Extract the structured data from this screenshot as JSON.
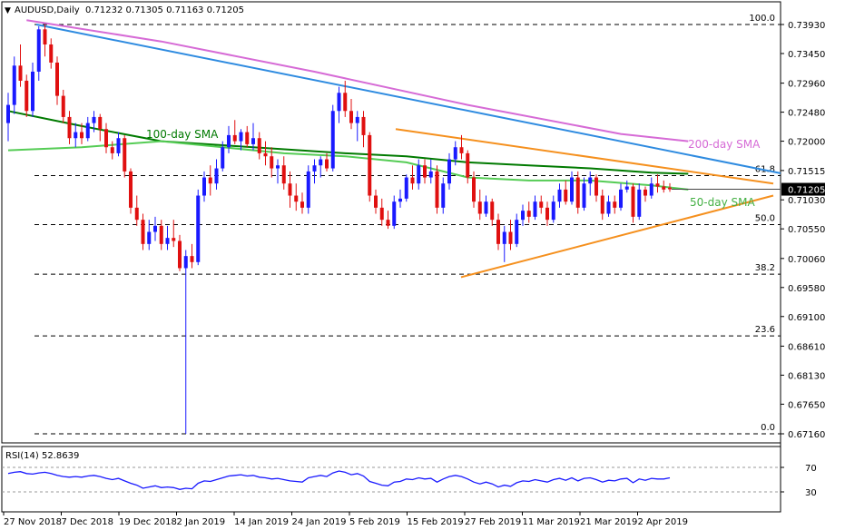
{
  "header": {
    "symbol": "AUDUSD,Daily",
    "ohlc": "0.71232 0.71305 0.71163 0.71205"
  },
  "rsi_header": "RSI(14) 52.8639",
  "annotations": {
    "sma100": "100-day SMA",
    "sma200": "200-day SMA",
    "sma50": "50-day SMA"
  },
  "fib_labels": [
    "100.0",
    "61.8",
    "50.0",
    "38.2",
    "23.6",
    "0.0"
  ],
  "fib_levels": [
    0.7393,
    0.7143,
    0.7062,
    0.698,
    0.6878,
    0.6716
  ],
  "price_ticks": [
    "0.73930",
    "0.73450",
    "0.72960",
    "0.72480",
    "0.72000",
    "0.71515",
    "0.71030",
    "0.70550",
    "0.70060",
    "0.69580",
    "0.69100",
    "0.68610",
    "0.68130",
    "0.67650",
    "0.67160"
  ],
  "current_price": "0.71205",
  "rsi_ticks": [
    "70",
    "30"
  ],
  "date_ticks": [
    "27 Nov 2018",
    "7 Dec 2018",
    "19 Dec 2018",
    "2 Jan 2019",
    "14 Jan 2019",
    "24 Jan 2019",
    "5 Feb 2019",
    "15 Feb 2019",
    "27 Feb 2019",
    "11 Mar 2019",
    "21 Mar 2019",
    "2 Apr 2019"
  ],
  "colors": {
    "bull": "#1a1aff",
    "bear": "#e01010",
    "sma100": "#007a00",
    "sma50": "#55cc55",
    "sma200": "#d66bd6",
    "trend_blue": "#2e8be0",
    "trend_orange": "#f5901e",
    "rsi": "#1a1aff"
  },
  "chart_data": [
    {
      "type": "candlestick",
      "title": "AUDUSD,Daily",
      "ylim": [
        0.6716,
        0.7393
      ],
      "series": [
        {
          "name": "AUDUSD",
          "ohlc": [
            [
              0.723,
              0.728,
              0.72,
              0.726
            ],
            [
              0.726,
              0.734,
              0.7245,
              0.7325
            ],
            [
              0.7325,
              0.736,
              0.729,
              0.73
            ],
            [
              0.73,
              0.731,
              0.724,
              0.725
            ],
            [
              0.725,
              0.733,
              0.724,
              0.7315
            ],
            [
              0.7315,
              0.739,
              0.73,
              0.7385
            ],
            [
              0.7385,
              0.7393,
              0.734,
              0.736
            ],
            [
              0.736,
              0.737,
              0.732,
              0.733
            ],
            [
              0.733,
              0.734,
              0.726,
              0.7275
            ],
            [
              0.7275,
              0.7285,
              0.723,
              0.724
            ],
            [
              0.724,
              0.725,
              0.7195,
              0.7205
            ],
            [
              0.7205,
              0.723,
              0.719,
              0.7215
            ],
            [
              0.7215,
              0.723,
              0.7195,
              0.7205
            ],
            [
              0.7205,
              0.724,
              0.72,
              0.723
            ],
            [
              0.723,
              0.725,
              0.7215,
              0.724
            ],
            [
              0.724,
              0.7245,
              0.72,
              0.722
            ],
            [
              0.722,
              0.723,
              0.718,
              0.719
            ],
            [
              0.719,
              0.72,
              0.717,
              0.718
            ],
            [
              0.718,
              0.7215,
              0.7175,
              0.7205
            ],
            [
              0.7205,
              0.721,
              0.714,
              0.715
            ],
            [
              0.715,
              0.7155,
              0.708,
              0.709
            ],
            [
              0.709,
              0.711,
              0.706,
              0.707
            ],
            [
              0.707,
              0.708,
              0.702,
              0.703
            ],
            [
              0.703,
              0.707,
              0.702,
              0.705
            ],
            [
              0.705,
              0.7075,
              0.7035,
              0.706
            ],
            [
              0.706,
              0.707,
              0.702,
              0.703
            ],
            [
              0.703,
              0.706,
              0.702,
              0.704
            ],
            [
              0.704,
              0.707,
              0.7025,
              0.7035
            ],
            [
              0.7035,
              0.7045,
              0.6985,
              0.699
            ],
            [
              0.699,
              0.702,
              0.6716,
              0.701
            ],
            [
              0.701,
              0.703,
              0.699,
              0.7
            ],
            [
              0.7,
              0.712,
              0.6995,
              0.711
            ],
            [
              0.711,
              0.715,
              0.71,
              0.714
            ],
            [
              0.714,
              0.716,
              0.711,
              0.713
            ],
            [
              0.713,
              0.717,
              0.712,
              0.7155
            ],
            [
              0.7155,
              0.72,
              0.715,
              0.719
            ],
            [
              0.719,
              0.7225,
              0.718,
              0.721
            ],
            [
              0.721,
              0.7235,
              0.7195,
              0.72
            ],
            [
              0.72,
              0.722,
              0.7185,
              0.7215
            ],
            [
              0.7215,
              0.7225,
              0.719,
              0.7195
            ],
            [
              0.7195,
              0.723,
              0.7185,
              0.7205
            ],
            [
              0.7205,
              0.7215,
              0.717,
              0.718
            ],
            [
              0.718,
              0.72,
              0.716,
              0.7175
            ],
            [
              0.7175,
              0.719,
              0.714,
              0.7155
            ],
            [
              0.7155,
              0.717,
              0.713,
              0.716
            ],
            [
              0.716,
              0.7175,
              0.712,
              0.713
            ],
            [
              0.713,
              0.715,
              0.709,
              0.711
            ],
            [
              0.711,
              0.713,
              0.7085,
              0.71
            ],
            [
              0.71,
              0.7115,
              0.708,
              0.709
            ],
            [
              0.709,
              0.716,
              0.708,
              0.715
            ],
            [
              0.715,
              0.717,
              0.713,
              0.716
            ],
            [
              0.716,
              0.7175,
              0.714,
              0.717
            ],
            [
              0.717,
              0.718,
              0.715,
              0.7155
            ],
            [
              0.7155,
              0.726,
              0.715,
              0.725
            ],
            [
              0.725,
              0.729,
              0.723,
              0.728
            ],
            [
              0.728,
              0.73,
              0.724,
              0.725
            ],
            [
              0.725,
              0.727,
              0.722,
              0.723
            ],
            [
              0.723,
              0.725,
              0.72,
              0.724
            ],
            [
              0.724,
              0.725,
              0.719,
              0.721
            ],
            [
              0.721,
              0.7215,
              0.71,
              0.711
            ],
            [
              0.711,
              0.712,
              0.708,
              0.709
            ],
            [
              0.709,
              0.7105,
              0.706,
              0.707
            ],
            [
              0.707,
              0.7085,
              0.7055,
              0.706
            ],
            [
              0.706,
              0.711,
              0.7055,
              0.71
            ],
            [
              0.71,
              0.712,
              0.709,
              0.7105
            ],
            [
              0.7105,
              0.7145,
              0.71,
              0.714
            ],
            [
              0.714,
              0.716,
              0.712,
              0.713
            ],
            [
              0.713,
              0.717,
              0.712,
              0.716
            ],
            [
              0.716,
              0.717,
              0.713,
              0.714
            ],
            [
              0.714,
              0.717,
              0.713,
              0.715
            ],
            [
              0.715,
              0.716,
              0.708,
              0.709
            ],
            [
              0.709,
              0.714,
              0.708,
              0.713
            ],
            [
              0.713,
              0.718,
              0.712,
              0.717
            ],
            [
              0.717,
              0.72,
              0.716,
              0.719
            ],
            [
              0.719,
              0.721,
              0.717,
              0.718
            ],
            [
              0.718,
              0.7185,
              0.713,
              0.714
            ],
            [
              0.714,
              0.715,
              0.709,
              0.71
            ],
            [
              0.71,
              0.712,
              0.707,
              0.708
            ],
            [
              0.708,
              0.711,
              0.7075,
              0.71
            ],
            [
              0.71,
              0.7105,
              0.706,
              0.707
            ],
            [
              0.707,
              0.708,
              0.702,
              0.703
            ],
            [
              0.703,
              0.706,
              0.7,
              0.705
            ],
            [
              0.705,
              0.707,
              0.702,
              0.703
            ],
            [
              0.703,
              0.708,
              0.7025,
              0.707
            ],
            [
              0.707,
              0.7095,
              0.706,
              0.7085
            ],
            [
              0.7085,
              0.71,
              0.7065,
              0.7075
            ],
            [
              0.7075,
              0.711,
              0.707,
              0.71
            ],
            [
              0.71,
              0.711,
              0.708,
              0.709
            ],
            [
              0.709,
              0.71,
              0.706,
              0.707
            ],
            [
              0.707,
              0.711,
              0.7065,
              0.71
            ],
            [
              0.71,
              0.713,
              0.709,
              0.712
            ],
            [
              0.712,
              0.7135,
              0.7095,
              0.71
            ],
            [
              0.71,
              0.715,
              0.7095,
              0.714
            ],
            [
              0.714,
              0.715,
              0.708,
              0.709
            ],
            [
              0.709,
              0.714,
              0.7085,
              0.713
            ],
            [
              0.713,
              0.715,
              0.711,
              0.714
            ],
            [
              0.714,
              0.7145,
              0.71,
              0.711
            ],
            [
              0.711,
              0.712,
              0.707,
              0.708
            ],
            [
              0.708,
              0.711,
              0.7075,
              0.71
            ],
            [
              0.71,
              0.711,
              0.708,
              0.709
            ],
            [
              0.709,
              0.713,
              0.7085,
              0.712
            ],
            [
              0.712,
              0.7135,
              0.7115,
              0.7125
            ],
            [
              0.7125,
              0.713,
              0.7065,
              0.7075
            ],
            [
              0.7075,
              0.713,
              0.707,
              0.712
            ],
            [
              0.712,
              0.7125,
              0.71,
              0.711
            ],
            [
              0.711,
              0.714,
              0.7105,
              0.713
            ],
            [
              0.713,
              0.7145,
              0.7115,
              0.7125
            ],
            [
              0.7125,
              0.7135,
              0.7115,
              0.712
            ],
            [
              0.71232,
              0.71305,
              0.71163,
              0.71205
            ]
          ]
        },
        {
          "name": "100-day SMA",
          "x": [
            0,
            12,
            25,
            40,
            55,
            65,
            75,
            85,
            95,
            105,
            111
          ],
          "y": [
            0.725,
            0.7225,
            0.72,
            0.719,
            0.718,
            0.7175,
            0.7165,
            0.716,
            0.7155,
            0.7148,
            0.7146
          ]
        },
        {
          "name": "50-day SMA",
          "x": [
            0,
            12,
            25,
            35,
            45,
            55,
            65,
            75,
            85,
            95,
            105,
            111
          ],
          "y": [
            0.7185,
            0.719,
            0.72,
            0.719,
            0.718,
            0.7175,
            0.7165,
            0.714,
            0.7135,
            0.7135,
            0.7127,
            0.712
          ]
        },
        {
          "name": "200-day SMA",
          "x": [
            3,
            25,
            50,
            75,
            100,
            111
          ],
          "y": [
            0.74,
            0.7365,
            0.7315,
            0.726,
            0.7212,
            0.72
          ]
        }
      ]
    },
    {
      "type": "line",
      "title": "RSI(14) 52.8639",
      "ylim": [
        0,
        100
      ],
      "series": [
        {
          "name": "RSI(14)",
          "values": [
            60,
            62,
            63,
            60,
            59,
            61,
            62,
            60,
            57,
            55,
            54,
            55,
            54,
            56,
            57,
            55,
            52,
            50,
            52,
            48,
            44,
            41,
            36,
            38,
            40,
            37,
            38,
            37,
            34,
            36,
            35,
            44,
            48,
            47,
            50,
            53,
            56,
            57,
            58,
            56,
            57,
            54,
            53,
            51,
            52,
            50,
            48,
            47,
            46,
            53,
            55,
            57,
            55,
            61,
            64,
            62,
            58,
            60,
            56,
            47,
            44,
            41,
            40,
            46,
            47,
            51,
            50,
            53,
            51,
            52,
            46,
            51,
            55,
            57,
            55,
            51,
            46,
            43,
            46,
            43,
            38,
            41,
            39,
            45,
            48,
            47,
            50,
            48,
            46,
            50,
            52,
            49,
            53,
            48,
            52,
            53,
            50,
            46,
            49,
            48,
            51,
            52,
            45,
            51,
            49,
            52,
            51,
            51,
            53
          ]
        }
      ],
      "yticks": [
        70,
        30
      ]
    }
  ]
}
